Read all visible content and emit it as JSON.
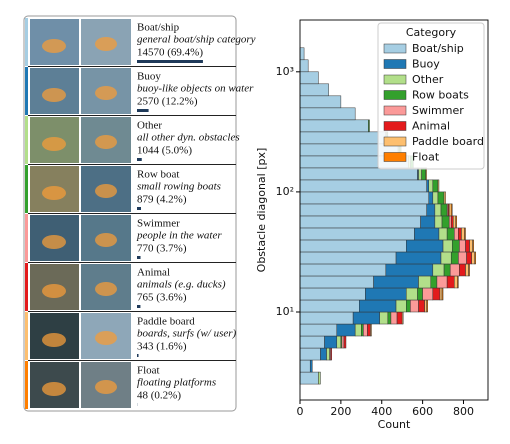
{
  "panel": {
    "rows": [
      {
        "name": "Boat/ship",
        "description": "general boat/ship category",
        "stats": "14570 (69.4%)",
        "share": 69.4
      },
      {
        "name": "Buoy",
        "description": "buoy-like objects on water",
        "stats": "2570 (12.2%)",
        "share": 12.2
      },
      {
        "name": "Other",
        "description": "all other dyn. obstacles",
        "stats": "1044 (5.0%)",
        "share": 5.0
      },
      {
        "name": "Row boat",
        "description": "small rowing boats",
        "stats": "879 (4.2%)",
        "share": 4.2
      },
      {
        "name": "Swimmer",
        "description": "people in the water",
        "stats": "770 (3.7%)",
        "share": 3.7
      },
      {
        "name": "Animal",
        "description": "animals (e.g. ducks)",
        "stats": "765 (3.6%)",
        "share": 3.6
      },
      {
        "name": "Paddle board",
        "description": "boards, surfs (w/ user)",
        "stats": "343 (1.6%)",
        "share": 1.6
      },
      {
        "name": "Float",
        "description": "floating platforms",
        "stats": "48 (0.2%)",
        "share": 0.2
      }
    ]
  },
  "chart_data": {
    "type": "stacked-histogram-horizontal",
    "xlabel": "Count",
    "ylabel": "Obstacle diagonal [px]",
    "legend_title": "Category",
    "legend": "upper right",
    "log_y": true,
    "xlim": [
      0,
      920
    ],
    "xticks": [
      0,
      200,
      400,
      600,
      800
    ],
    "ylim": [
      1.85,
      2700
    ],
    "yticks": [
      {
        "value": 10,
        "label": "10¹"
      },
      {
        "value": 100,
        "label": "10²"
      },
      {
        "value": 1000,
        "label": "10³"
      }
    ],
    "bins": [
      2.51,
      3.16,
      3.98,
      5.01,
      6.31,
      7.94,
      10,
      12.59,
      15.85,
      19.95,
      25.12,
      31.62,
      39.81,
      50.12,
      63.1,
      79.43,
      100,
      125.9,
      158.5,
      199.5,
      251.2,
      316.2,
      398.1,
      501.2,
      631,
      794.3,
      1000,
      1259,
      1585
    ],
    "series": [
      {
        "name": "Boat/ship",
        "color": "#a6cee3",
        "values": [
          90,
          50,
          100,
          120,
          180,
          260,
          290,
          320,
          360,
          420,
          470,
          520,
          560,
          590,
          620,
          630,
          620,
          575,
          530,
          480,
          420,
          335,
          270,
          200,
          140,
          90,
          40,
          20
        ]
      },
      {
        "name": "Buoy",
        "color": "#1f78b4",
        "values": [
          0,
          10,
          30,
          60,
          90,
          130,
          180,
          200,
          220,
          230,
          220,
          180,
          120,
          70,
          40,
          20,
          10,
          5,
          0,
          0,
          0,
          0,
          0,
          0,
          0,
          0,
          0,
          0
        ]
      },
      {
        "name": "Other",
        "color": "#b2df8a",
        "values": [
          10,
          0,
          15,
          20,
          30,
          40,
          50,
          55,
          60,
          55,
          50,
          45,
          40,
          35,
          30,
          25,
          20,
          15,
          10,
          5,
          5,
          0,
          0,
          0,
          0,
          0,
          0,
          0
        ]
      },
      {
        "name": "Row boats",
        "color": "#33a02c",
        "values": [
          0,
          0,
          0,
          5,
          10,
          15,
          20,
          25,
          30,
          30,
          35,
          35,
          35,
          35,
          30,
          30,
          25,
          20,
          15,
          10,
          5,
          5,
          0,
          0,
          0,
          0,
          0,
          0
        ]
      },
      {
        "name": "Swimmer",
        "color": "#fb9a99",
        "values": [
          0,
          0,
          5,
          10,
          20,
          30,
          40,
          50,
          50,
          45,
          40,
          30,
          20,
          10,
          5,
          0,
          0,
          0,
          0,
          0,
          0,
          0,
          0,
          0,
          0,
          0,
          0,
          0
        ]
      },
      {
        "name": "Animal",
        "color": "#e31a1c",
        "values": [
          0,
          0,
          5,
          10,
          15,
          25,
          30,
          35,
          35,
          30,
          25,
          20,
          15,
          10,
          5,
          0,
          0,
          0,
          0,
          0,
          0,
          0,
          0,
          0,
          0,
          0,
          0,
          0
        ]
      },
      {
        "name": "Paddle board",
        "color": "#fdbf6f",
        "values": [
          0,
          0,
          0,
          0,
          5,
          5,
          10,
          10,
          15,
          15,
          15,
          15,
          15,
          12,
          10,
          8,
          5,
          5,
          0,
          0,
          0,
          0,
          0,
          0,
          0,
          0,
          0,
          0
        ]
      },
      {
        "name": "Float",
        "color": "#ff7f00",
        "values": [
          0,
          0,
          0,
          0,
          0,
          0,
          5,
          5,
          5,
          5,
          5,
          5,
          5,
          5,
          5,
          0,
          0,
          0,
          0,
          0,
          0,
          0,
          0,
          0,
          0,
          0,
          0,
          0
        ]
      }
    ]
  }
}
